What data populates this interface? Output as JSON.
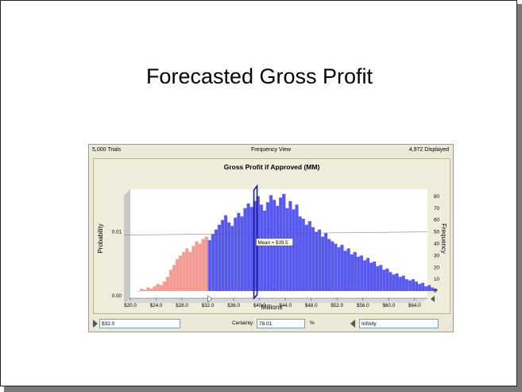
{
  "slide": {
    "title": "Forecasted Gross Profit"
  },
  "forecast_window": {
    "trials_label": "5,000 Trials",
    "view_label": "Frequency View",
    "displayed_label": "4,972 Displayed",
    "bottom": {
      "left_value": "$32.0",
      "certainty_label": "Certainty:",
      "certainty_value": "78.01",
      "percent_sign": "%",
      "right_value": "Infinity"
    }
  },
  "colors": {
    "tail": "#f08a80",
    "body": "#3b3bea",
    "mean_line": "#1a1aa0",
    "plot_bg": "#ffffff",
    "wall": "#c8c8c8"
  },
  "chart_data": {
    "type": "bar",
    "title": "Gross Profit if Approved (MM)",
    "xlabel": "Millions",
    "ylabel_left": "Probability",
    "ylabel_right": "Frequency",
    "x_range": [
      20,
      66
    ],
    "x_ticks": [
      "$20.0",
      "$24.0",
      "$28.0",
      "$32.0",
      "$36.0",
      "$40.0",
      "$44.0",
      "$48.0",
      "$52.0",
      "$56.0",
      "$60.0",
      "$64.0"
    ],
    "x_tick_values": [
      20,
      24,
      28,
      32,
      36,
      40,
      44,
      48,
      52,
      56,
      60,
      64
    ],
    "left_ticks": [
      "0.00",
      "0.01"
    ],
    "left_tick_freq": [
      0,
      50
    ],
    "right_ticks": [
      "0",
      "10",
      "20",
      "30",
      "40",
      "50",
      "60",
      "70",
      "80"
    ],
    "right_tick_values": [
      0,
      10,
      20,
      30,
      40,
      50,
      60,
      70,
      80
    ],
    "y_range": [
      -6,
      86
    ],
    "grid": true,
    "certainty_threshold": 32,
    "mean": 39.5,
    "mean_label": "Mean = $39.5",
    "bin_start": 21,
    "bin_width": 0.5,
    "frequencies": [
      0,
      2,
      1,
      3,
      2,
      4,
      6,
      5,
      8,
      12,
      18,
      22,
      27,
      30,
      33,
      36,
      33,
      38,
      42,
      40,
      44,
      46,
      43,
      48,
      52,
      56,
      60,
      64,
      58,
      55,
      62,
      66,
      63,
      70,
      74,
      71,
      76,
      80,
      73,
      68,
      75,
      81,
      77,
      72,
      79,
      82,
      70,
      76,
      69,
      73,
      63,
      61,
      56,
      59,
      54,
      50,
      52,
      46,
      49,
      44,
      42,
      40,
      37,
      39,
      34,
      36,
      31,
      33,
      29,
      30,
      26,
      28,
      24,
      25,
      21,
      22,
      18,
      19,
      16,
      14,
      15,
      12,
      13,
      10,
      9,
      10,
      8,
      6,
      7,
      4,
      5,
      3,
      2
    ]
  }
}
